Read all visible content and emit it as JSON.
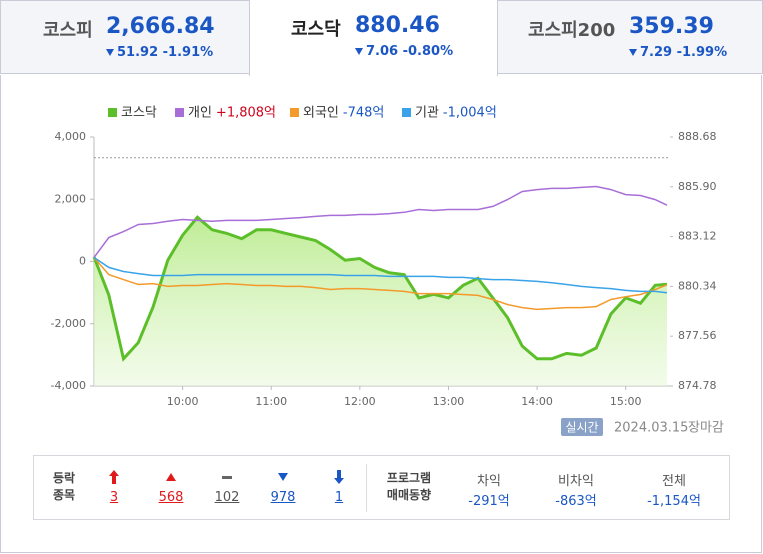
{
  "tabs": [
    {
      "name": "코스피",
      "value": "2,666.84",
      "change": "51.92",
      "rate": "-1.91%"
    },
    {
      "name": "코스닥",
      "value": "880.46",
      "change": "7.06",
      "rate": "-0.80%"
    },
    {
      "name": "코스피200",
      "value": "359.39",
      "change": "7.29",
      "rate": "-1.99%"
    }
  ],
  "chart_data": {
    "type": "line",
    "x": [
      540,
      550,
      560,
      570,
      580,
      590,
      600,
      610,
      620,
      630,
      640,
      650,
      660,
      670,
      680,
      690,
      700,
      710,
      720,
      730,
      740,
      750,
      760,
      770,
      780,
      790,
      800,
      810,
      820,
      830,
      840,
      850,
      860,
      870,
      880,
      890,
      900,
      910,
      920,
      928
    ],
    "xlim": [
      540,
      930
    ],
    "xticks": [
      {
        "value": 600,
        "label": "10:00"
      },
      {
        "value": 660,
        "label": "11:00"
      },
      {
        "value": 720,
        "label": "12:00"
      },
      {
        "value": 780,
        "label": "13:00"
      },
      {
        "value": 840,
        "label": "14:00"
      },
      {
        "value": 900,
        "label": "15:00"
      }
    ],
    "ylim": [
      -4000,
      4000
    ],
    "yticks": [
      {
        "value": 4000,
        "label": "4,000"
      },
      {
        "value": 2000,
        "label": "2,000"
      },
      0,
      {
        "value": -2000,
        "label": "-2,000"
      },
      {
        "value": -4000,
        "label": "-4,000"
      }
    ],
    "y2lim": [
      874.78,
      888.68
    ],
    "y2ticks": [
      888.68,
      {
        "value": 885.9,
        "label": "885.90"
      },
      883.12,
      880.34,
      877.56,
      874.78
    ],
    "reference_line": 887.52,
    "series": [
      {
        "name": "코스닥",
        "color": "#5cbf2a",
        "axis": "y2",
        "area": true,
        "values": [
          881.98,
          879.86,
          876.3,
          877.2,
          879.2,
          881.8,
          883.2,
          884.2,
          883.5,
          883.3,
          883.0,
          883.5,
          883.5,
          883.3,
          883.1,
          882.9,
          882.4,
          881.8,
          881.9,
          881.4,
          881.1,
          881.0,
          879.7,
          879.9,
          879.7,
          880.4,
          880.8,
          879.7,
          878.6,
          877.0,
          876.3,
          876.3,
          876.6,
          876.5,
          876.9,
          878.8,
          879.7,
          879.4,
          880.4,
          880.46
        ]
      },
      {
        "name": "개인",
        "total_label": "+1,808억",
        "label_color": "#d0021b",
        "color": "#a86ed8",
        "values": [
          130,
          770,
          960,
          1190,
          1220,
          1290,
          1350,
          1320,
          1290,
          1320,
          1320,
          1320,
          1350,
          1380,
          1410,
          1450,
          1480,
          1480,
          1510,
          1510,
          1540,
          1580,
          1670,
          1640,
          1670,
          1670,
          1670,
          1770,
          1990,
          2250,
          2310,
          2350,
          2350,
          2380,
          2410,
          2310,
          2150,
          2120,
          1990,
          1808
        ]
      },
      {
        "name": "외국인",
        "total_label": "-748억",
        "label_color": "#1a56c4",
        "color": "#f39a2b",
        "values": [
          130,
          -420,
          -580,
          -740,
          -710,
          -800,
          -770,
          -770,
          -740,
          -710,
          -740,
          -770,
          -770,
          -800,
          -800,
          -840,
          -900,
          -870,
          -870,
          -900,
          -930,
          -960,
          -1030,
          -1030,
          -1030,
          -1060,
          -1090,
          -1220,
          -1380,
          -1480,
          -1540,
          -1510,
          -1480,
          -1480,
          -1450,
          -1220,
          -1130,
          -1060,
          -900,
          -748
        ]
      },
      {
        "name": "기관",
        "total_label": "-1,004억",
        "label_color": "#1a56c4",
        "color": "#3aa2e8",
        "values": [
          130,
          -190,
          -320,
          -390,
          -450,
          -450,
          -450,
          -420,
          -420,
          -420,
          -420,
          -420,
          -420,
          -420,
          -420,
          -420,
          -420,
          -450,
          -450,
          -450,
          -480,
          -480,
          -480,
          -480,
          -510,
          -510,
          -550,
          -580,
          -580,
          -610,
          -640,
          -680,
          -740,
          -800,
          -840,
          -870,
          -930,
          -960,
          -960,
          -1004
        ]
      }
    ]
  },
  "status": {
    "badge": "실시간",
    "date": "2024.03.15",
    "state": "장마감"
  },
  "advance_decline": {
    "label": [
      "등락",
      "종목"
    ],
    "items": [
      "3",
      "568",
      "102",
      "978",
      "1"
    ]
  },
  "program": {
    "label": [
      "프로그램",
      "매매동향"
    ],
    "columns": [
      {
        "name": "차익",
        "value": "-291억"
      },
      {
        "name": "비차익",
        "value": "-863억"
      },
      {
        "name": "전체",
        "value": "-1,154억"
      }
    ]
  }
}
